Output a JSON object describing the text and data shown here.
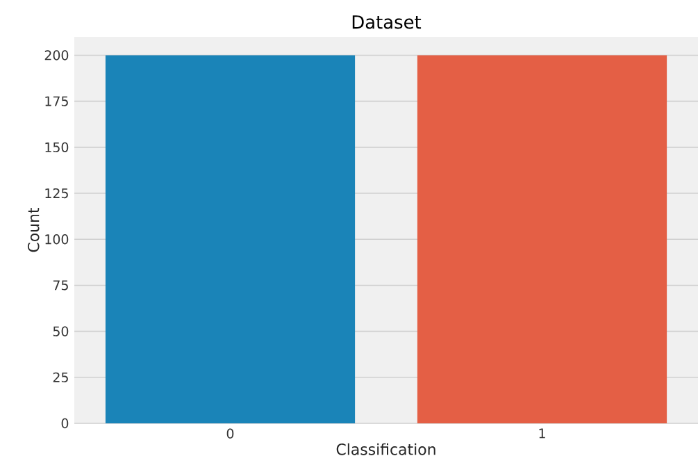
{
  "chart_data": {
    "type": "bar",
    "title": "Dataset",
    "xlabel": "Classification",
    "ylabel": "Count",
    "categories": [
      "0",
      "1"
    ],
    "values": [
      200,
      200
    ],
    "colors": [
      "#1a84b8",
      "#e45f45"
    ],
    "ylim": [
      0,
      210
    ],
    "yticks": [
      0,
      25,
      50,
      75,
      100,
      125,
      150,
      175,
      200
    ],
    "grid": "y"
  }
}
